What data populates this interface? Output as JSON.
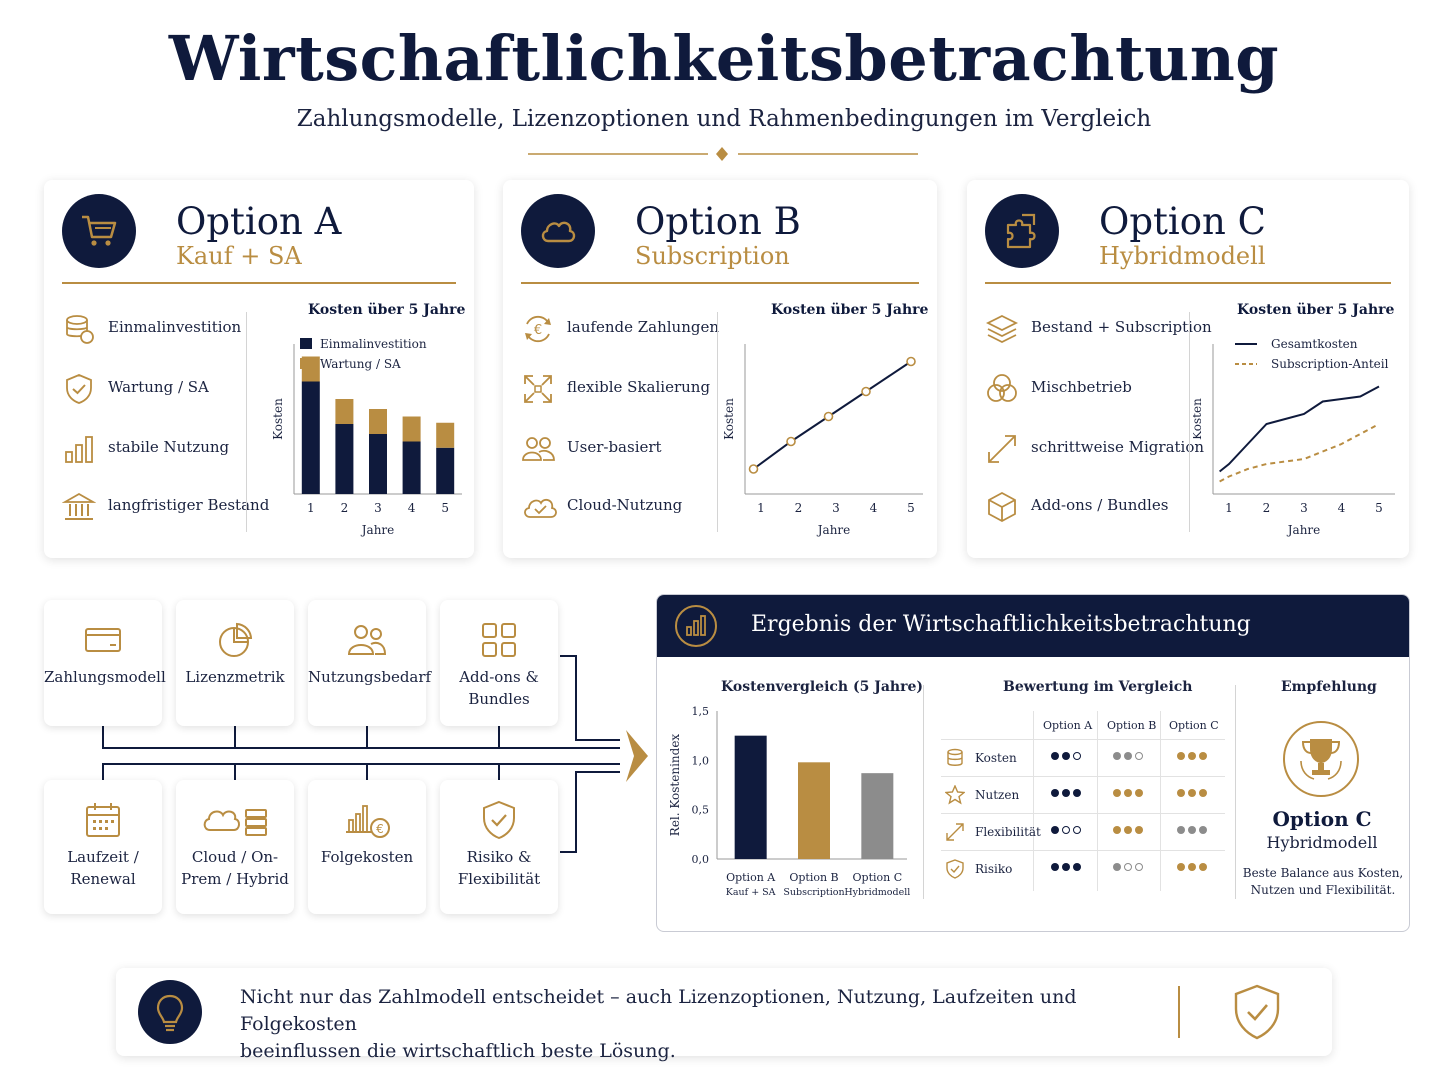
{
  "header": {
    "title": "Wirtschaftlichkeitsbetrachtung",
    "subtitle": "Zahlungsmodelle, Lizenzoptionen und Rahmenbedingungen im Vergleich"
  },
  "colors": {
    "navy": "#0f1a3c",
    "gold": "#b98d42",
    "gray": "#8c8c8c"
  },
  "options": [
    {
      "title": "Option A",
      "subtitle": "Kauf + SA",
      "icon": "shopping-cart-icon",
      "features": [
        {
          "icon": "coins-stack-icon",
          "label": "Einmalinvestition"
        },
        {
          "icon": "shield-check-icon",
          "label": "Wartung / SA"
        },
        {
          "icon": "bar-chart-icon",
          "label": "stabile Nutzung"
        },
        {
          "icon": "bank-building-icon",
          "label": "langfristiger Bestand"
        }
      ],
      "chart_title": "Kosten über 5 Jahre",
      "legend": [
        "Einmalinvestition",
        "Wartung / SA"
      ]
    },
    {
      "title": "Option B",
      "subtitle": "Subscription",
      "icon": "cloud-icon",
      "features": [
        {
          "icon": "euro-cycle-icon",
          "label": "laufende Zahlungen"
        },
        {
          "icon": "expand-arrows-icon",
          "label": "flexible Skalierung"
        },
        {
          "icon": "users-icon",
          "label": "User-basiert"
        },
        {
          "icon": "cloud-check-icon",
          "label": "Cloud-Nutzung"
        }
      ],
      "chart_title": "Kosten über 5 Jahre"
    },
    {
      "title": "Option C",
      "subtitle": "Hybridmodell",
      "icon": "puzzle-icon",
      "features": [
        {
          "icon": "layers-icon",
          "label": "Bestand + Subscription"
        },
        {
          "icon": "overlap-circles-icon",
          "label": "Mischbetrieb"
        },
        {
          "icon": "migration-arrow-icon",
          "label": "schrittweise Migration"
        },
        {
          "icon": "box-icon",
          "label": "Add-ons / Bundles"
        }
      ],
      "chart_title": "Kosten über 5 Jahre",
      "legend": [
        "Gesamtkosten",
        "Subscription-Anteil"
      ]
    }
  ],
  "factors": [
    {
      "icon": "credit-card-icon",
      "label": "Zahlungsmodell"
    },
    {
      "icon": "pie-chart-icon",
      "label": "Lizenzmetrik"
    },
    {
      "icon": "users-icon",
      "label": "Nutzungsbedarf"
    },
    {
      "icon": "grid-blocks-icon",
      "label": "Add-ons & Bundles"
    },
    {
      "icon": "calendar-icon",
      "label": "Laufzeit / Renewal"
    },
    {
      "icon": "cloud-server-icon",
      "label": "Cloud / On-Prem / Hybrid"
    },
    {
      "icon": "cost-chart-icon",
      "label": "Folgekosten"
    },
    {
      "icon": "shield-check-icon",
      "label": "Risiko & Flexibilität"
    }
  ],
  "result": {
    "title": "Ergebnis der Wirtschaftlichkeitsbetrachtung",
    "comparison_title": "Kostenvergleich (5 Jahre)",
    "rating_title": "Bewertung im Vergleich",
    "recommendation_title": "Empfehlung",
    "rating_columns": [
      "Option A",
      "Option B",
      "Option C"
    ],
    "ratings": [
      {
        "icon": "coins-stack-icon",
        "label": "Kosten",
        "scores": [
          2,
          2,
          3
        ],
        "colors": [
          "navy",
          "gray",
          "gold"
        ]
      },
      {
        "icon": "star-icon",
        "label": "Nutzen",
        "scores": [
          3,
          3,
          3
        ],
        "colors": [
          "navy",
          "gold",
          "gold"
        ]
      },
      {
        "icon": "migration-arrow-icon",
        "label": "Flexibilität",
        "scores": [
          1,
          3,
          3
        ],
        "colors": [
          "navy",
          "gold",
          "gray"
        ]
      },
      {
        "icon": "shield-check-icon",
        "label": "Risiko",
        "scores": [
          3,
          1,
          3
        ],
        "colors": [
          "navy",
          "gray",
          "gold"
        ]
      }
    ],
    "recommendation": {
      "icon": "trophy-icon",
      "option": "Option C",
      "subtitle": "Hybridmodell",
      "note_line1": "Beste Balance aus Kosten,",
      "note_line2": "Nutzen und Flexibilität."
    }
  },
  "footer": {
    "line1": "Nicht nur das Zahlmodell entscheidet – auch Lizenzoptionen, Nutzung, Laufzeiten und Folgekosten",
    "line2": "beeinflussen die wirtschaftlich beste Lösung."
  },
  "chart_data": [
    {
      "type": "bar",
      "title": "Kosten über 5 Jahre",
      "xlabel": "Jahre",
      "ylabel": "Kosten",
      "categories": [
        "1",
        "2",
        "3",
        "4",
        "5"
      ],
      "stacked": true,
      "series": [
        {
          "name": "Einmalinvestition",
          "values": [
            90,
            56,
            48,
            42,
            37
          ],
          "color": "#0f1a3c"
        },
        {
          "name": "Wartung / SA",
          "values": [
            20,
            20,
            20,
            20,
            20
          ],
          "color": "#b98d42"
        }
      ],
      "ylim": [
        0,
        120
      ]
    },
    {
      "type": "line",
      "title": "Kosten über 5 Jahre",
      "xlabel": "Jahre",
      "ylabel": "Kosten",
      "x": [
        0.8,
        1.8,
        2.8,
        3.8,
        5.0
      ],
      "series": [
        {
          "values": [
            20,
            42,
            62,
            82,
            106
          ],
          "color": "#0f1a3c",
          "markers": true
        }
      ],
      "ylim": [
        0,
        120
      ]
    },
    {
      "type": "line",
      "title": "Kosten über 5 Jahre",
      "xlabel": "Jahre",
      "ylabel": "Kosten",
      "x": [
        0.75,
        1,
        1.5,
        2,
        2.5,
        3,
        3.5,
        4,
        4.5,
        5
      ],
      "series": [
        {
          "name": "Gesamtkosten",
          "values": [
            18,
            24,
            40,
            56,
            60,
            64,
            74,
            76,
            78,
            86
          ],
          "color": "#0f1a3c",
          "style": "solid"
        },
        {
          "name": "Subscription-Anteil",
          "values": [
            10,
            14,
            20,
            24,
            26,
            28,
            34,
            40,
            48,
            56
          ],
          "color": "#b98d42",
          "style": "dashed"
        }
      ],
      "ylim": [
        0,
        120
      ]
    },
    {
      "type": "bar",
      "title": "Kostenvergleich (5 Jahre)",
      "ylabel": "Rel. Kostenindex",
      "categories": [
        "Option A",
        "Option B",
        "Option C"
      ],
      "category_sublabels": [
        "Kauf + SA",
        "Subscription",
        "Hybridmodell"
      ],
      "values": [
        1.25,
        0.98,
        0.87
      ],
      "colors": [
        "#0f1a3c",
        "#b98d42",
        "#8c8c8c"
      ],
      "yticks": [
        "0,0",
        "0,5",
        "1,0",
        "1,5"
      ],
      "ylim": [
        0,
        1.5
      ]
    }
  ]
}
